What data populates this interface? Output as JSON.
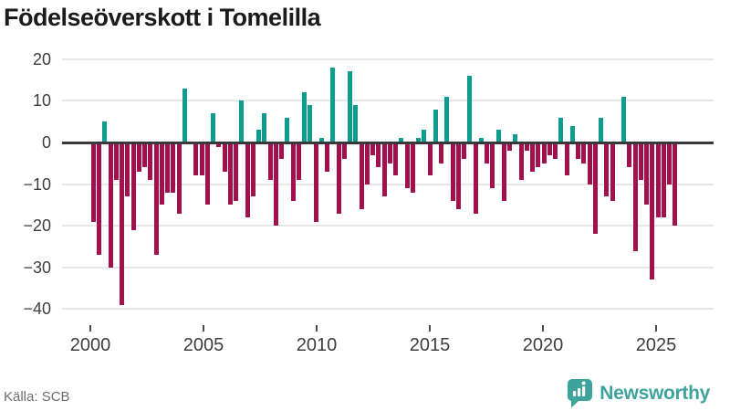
{
  "title": "Födelseöverskott i Tomelilla",
  "source": "Källa: SCB",
  "branding": {
    "name": "Newsworthy",
    "icon": "bar-chart-speech-bubble-icon",
    "color": "#3ea29d"
  },
  "colors": {
    "positive_bar": "#0e9b90",
    "negative_bar": "#a2104d",
    "axis_line": "#383838",
    "gridline": "#e7e7e7",
    "tick_label": "#3d3d3d",
    "title_text": "#1b1b1b",
    "source_text": "#6e6e6e"
  },
  "chart_data": {
    "type": "bar",
    "title": "Födelseöverskott i Tomelilla",
    "xlabel": "",
    "ylabel": "",
    "grid": "horizontal",
    "legend": "none",
    "frequency": "quarterly",
    "period_start": "2000-Q1",
    "period_end": "2025-Q3",
    "ylim": [
      -42,
      22
    ],
    "y_ticks": [
      20,
      10,
      0,
      -10,
      -20,
      -30,
      -40
    ],
    "x_tick_years": [
      2000,
      2005,
      2010,
      2015,
      2020,
      2025
    ],
    "x_tick_labels": [
      "2000",
      "2005",
      "2010",
      "2015",
      "2020",
      "2025"
    ],
    "values": [
      -19,
      -27,
      5,
      -30,
      -9,
      -39,
      -13,
      -21,
      -7,
      -6,
      -9,
      -27,
      -15,
      -12,
      -12,
      -17,
      13,
      0,
      -8,
      -8,
      -15,
      7,
      -1,
      -7,
      -15,
      -14,
      10,
      -18,
      -13,
      3,
      7,
      -9,
      -20,
      -4,
      6,
      -14,
      -9,
      12,
      9,
      -19,
      1,
      -7,
      18,
      -17,
      -4,
      17,
      9,
      -16,
      -10,
      -3,
      -6,
      -13,
      -5,
      -8,
      1,
      -11,
      -12,
      1,
      3,
      -8,
      8,
      -5,
      11,
      -14,
      -16,
      -4,
      16,
      -17,
      1,
      -5,
      -11,
      3,
      -14,
      -2,
      2,
      -9,
      -2,
      -7,
      -6,
      -5,
      -3,
      -4,
      6,
      -8,
      4,
      -4,
      -5,
      -10,
      -22,
      6,
      -13,
      -14,
      0,
      11,
      -6,
      -26,
      -9,
      -15,
      -33,
      -18,
      -18,
      -10,
      -20
    ]
  }
}
